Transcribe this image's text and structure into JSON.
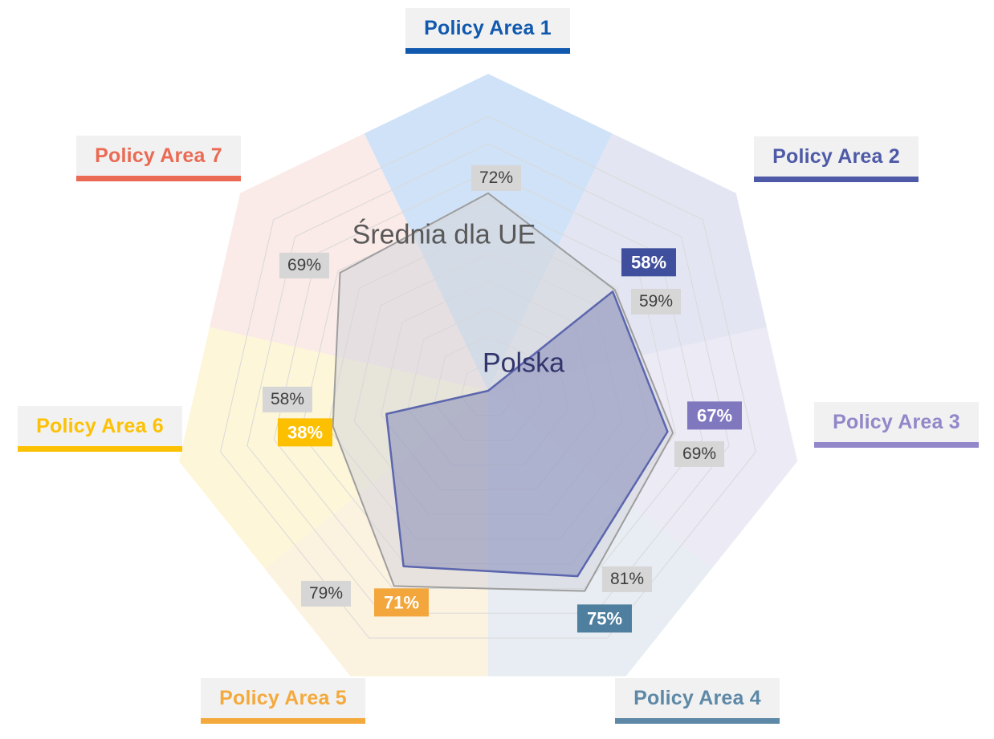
{
  "chart_data": {
    "type": "radar",
    "categories": [
      "Policy Area 1",
      "Policy Area 2",
      "Policy Area 3",
      "Policy Area 4",
      "Policy Area 5",
      "Policy Area 6",
      "Policy Area 7"
    ],
    "series": [
      {
        "name": "Średnia dla UE",
        "values": [
          72,
          59,
          69,
          81,
          79,
          58,
          69
        ]
      },
      {
        "name": "Polska",
        "values": [
          null,
          58,
          67,
          75,
          71,
          38,
          null
        ]
      }
    ],
    "value_format": "percent",
    "axis_range": [
      0,
      100
    ],
    "grid_interval": 10,
    "grid": true,
    "legend_position": "inline-labels"
  },
  "series_labels": {
    "eu": "Średnia dla UE",
    "pl": "Polska"
  },
  "colors": {
    "eu_stroke": "#9e9e9e",
    "eu_fill": "rgba(214,214,218,0.55)",
    "pl_stroke": "#5b66ae",
    "pl_fill": "rgba(126,132,181,0.50)",
    "grid_line": "#d9d9d9",
    "eu_badge_bg": "#d6d6d6",
    "eu_badge_text": "#3f3f3f",
    "label_box_bg": "#f1f1f1"
  },
  "areas": [
    {
      "label": "Policy Area 1",
      "accent": "#1059ae",
      "tint": "#d0e2f7",
      "eu_label": "72%",
      "pl_label": null,
      "badge": null
    },
    {
      "label": "Policy Area 2",
      "accent": "#4e5aa7",
      "tint": "#e3e6f2",
      "eu_label": "59%",
      "pl_label": "58%",
      "badge": "#404e9e"
    },
    {
      "label": "Policy Area 3",
      "accent": "#9287c9",
      "tint": "#ebeaf5",
      "eu_label": "69%",
      "pl_label": "67%",
      "badge": "#8078bf"
    },
    {
      "label": "Policy Area 4",
      "accent": "#5d88a6",
      "tint": "#e7edf3",
      "eu_label": "81%",
      "pl_label": "75%",
      "badge": "#4e7f9f"
    },
    {
      "label": "Policy Area 5",
      "accent": "#f4a93d",
      "tint": "#fcf2e0",
      "eu_label": "79%",
      "pl_label": "71%",
      "badge": "#f2a63c"
    },
    {
      "label": "Policy Area 6",
      "accent": "#fdc104",
      "tint": "#fdf6d8",
      "eu_label": "58%",
      "pl_label": "38%",
      "badge": "#fcc000"
    },
    {
      "label": "Policy Area 7",
      "accent": "#ea6a54",
      "tint": "#faeae8",
      "eu_label": "69%",
      "pl_label": null,
      "badge": null
    }
  ]
}
